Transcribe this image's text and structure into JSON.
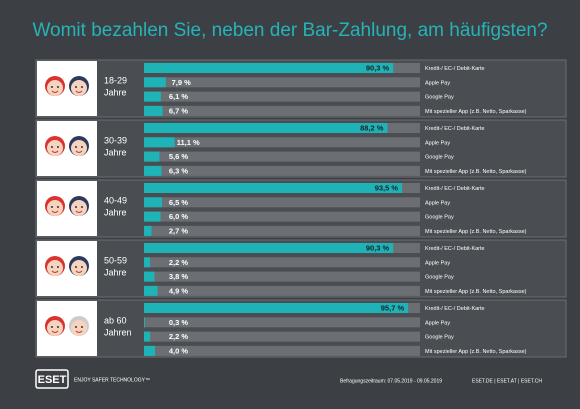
{
  "title": "Womit bezahlen Sie, neben der Bar-Zahlung, am häufigsten?",
  "chart_data": [
    {
      "type": "bar",
      "group": [
        "18-29",
        "Jahre"
      ],
      "categories": [
        "Kredit-/ EC-/ Debit-Karte",
        "Apple Pay",
        "Google Pay",
        "Mit spezieller App (z.B. Netto, Sparkasse)"
      ],
      "values": [
        90.3,
        7.9,
        6.1,
        6.7
      ],
      "value_labels": [
        "90,3 %",
        "7,9 %",
        "6,1 %",
        "6,7 %"
      ],
      "color": "#1db3b7",
      "xlim": [
        0,
        100
      ]
    },
    {
      "type": "bar",
      "group": [
        "30-39",
        "Jahre"
      ],
      "categories": [
        "Kredit-/ EC-/ Debit-Karte",
        "Apple Pay",
        "Google Pay",
        "Mit spezieller App (z.B. Netto, Sparkasse)"
      ],
      "values": [
        88.2,
        11.1,
        5.6,
        6.3
      ],
      "value_labels": [
        "88,2 %",
        "11,1 %",
        "5,6 %",
        "6,3 %"
      ],
      "color": "#1db3b7",
      "xlim": [
        0,
        100
      ]
    },
    {
      "type": "bar",
      "group": [
        "40-49",
        "Jahre"
      ],
      "categories": [
        "Kredit-/ EC-/ Debit-Karte",
        "Apple Pay",
        "Google Pay",
        "Mit spezieller App (z.B. Netto, Sparkasse)"
      ],
      "values": [
        93.5,
        6.5,
        6.0,
        2.7
      ],
      "value_labels": [
        "93,5 %",
        "6,5 %",
        "6,0 %",
        "2,7 %"
      ],
      "color": "#1db3b7",
      "xlim": [
        0,
        100
      ]
    },
    {
      "type": "bar",
      "group": [
        "50-59",
        "Jahre"
      ],
      "categories": [
        "Kredit-/ EC-/ Debit-Karte",
        "Apple Pay",
        "Google Pay",
        "Mit spezieller App (z.B. Netto, Sparkasse)"
      ],
      "values": [
        90.3,
        2.2,
        3.8,
        4.9
      ],
      "value_labels": [
        "90,3 %",
        "2,2 %",
        "3,8 %",
        "4,9 %"
      ],
      "color": "#1db3b7",
      "xlim": [
        0,
        100
      ]
    },
    {
      "type": "bar",
      "group": [
        "ab 60",
        "Jahren"
      ],
      "categories": [
        "Kredit-/ EC-/ Debit-Karte",
        "Apple Pay",
        "Google Pay",
        "Mit spezieller App (z.B. Netto, Sparkasse)"
      ],
      "values": [
        95.7,
        0.3,
        2.2,
        4.0
      ],
      "value_labels": [
        "95,7 %",
        "0,3 %",
        "2,2 %",
        "4,0 %"
      ],
      "color": "#1db3b7",
      "xlim": [
        0,
        100
      ]
    }
  ],
  "footer": {
    "logo": "ESET",
    "tagline": "ENJOY SAFER TECHNOLOGY™",
    "period": "Befragungszeitraum: 07.05.2019 - 09.05.2019",
    "sites": "ESET.DE | ESET.AT | ESET.CH"
  }
}
